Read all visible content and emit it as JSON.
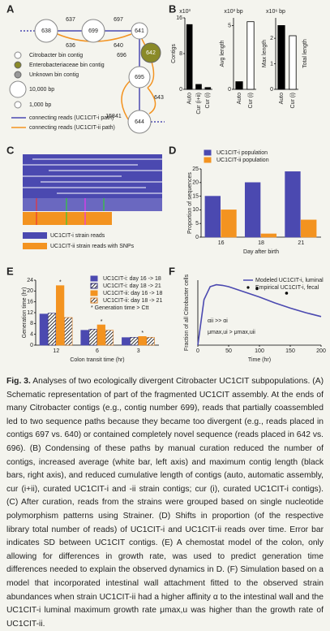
{
  "panel_letters": [
    "A",
    "B",
    "C",
    "D",
    "E",
    "F"
  ],
  "panel_a": {
    "nodes": [
      "638",
      "699",
      "641",
      "642",
      "695",
      "644"
    ],
    "edge_labels": [
      "637",
      "636",
      "697",
      "640",
      "696",
      "15841",
      "643"
    ],
    "legend": [
      "Citrobacter bin contig",
      "Enterobacteriaceae bin contig",
      "Unknown bin contig",
      "10,000 bp",
      "1,000 bp",
      "connecting reads (UC1CIT-i path)",
      "connecting reads (UC1CIT-ii path)"
    ]
  },
  "panel_c": {
    "legend": [
      "UC1CIT-i strain reads",
      "UC1CIT-ii strain reads with SNPs"
    ]
  },
  "chart_data": [
    {
      "type": "bar",
      "y_label": "Contigs",
      "y_unit": "x10³",
      "categories": [
        "Auto",
        "Cur (i+ii)",
        "Cur (i)"
      ],
      "values": [
        14.5,
        1.1,
        0.4
      ],
      "colors": [
        "#000000",
        "#000000",
        "#000000"
      ],
      "ylim": [
        0,
        16
      ],
      "yticks": [
        0,
        8,
        16
      ]
    },
    {
      "type": "bar",
      "y_label": "Avg length",
      "y_unit": "x10³ bp",
      "categories": [
        "Auto",
        "Cur (i)"
      ],
      "values": [
        0.6,
        5.3
      ],
      "colors": [
        "#000000",
        "#ffffff"
      ],
      "ylim": [
        0,
        5.6
      ],
      "yticks": [
        0,
        5
      ]
    },
    {
      "type": "bar",
      "y_label": "Max length",
      "y2_label": "Total length",
      "y_unit": "x10⁶ bp",
      "categories": [
        "Auto",
        "Cur (i)"
      ],
      "values": [
        2.5,
        2.1
      ],
      "colors": [
        "#000000",
        "#ffffff"
      ],
      "ylim": [
        0,
        2.8
      ],
      "yticks": [
        0,
        1,
        2
      ]
    },
    {
      "type": "bar",
      "y_label": "Proportion of sequences",
      "x_label": "Day after birth",
      "categories": [
        "16",
        "18",
        "21"
      ],
      "series": [
        {
          "name": "UC1CIT-i population",
          "color": "#4b49b0",
          "values": [
            15,
            20,
            24
          ]
        },
        {
          "name": "UC1CIT-ii population",
          "color": "#f39320",
          "values": [
            10,
            1.2,
            6.3
          ]
        }
      ],
      "ylim": [
        0,
        25
      ],
      "yticks": [
        0,
        5,
        10,
        15,
        20,
        25
      ]
    },
    {
      "type": "bar",
      "y_label": "Generation time (hr)",
      "x_label": "Colon transit time (hr)",
      "categories": [
        "12",
        "6",
        "3"
      ],
      "series": [
        {
          "name": "UC1CIT-i: day 16 -> 18",
          "color": "#4b49b0",
          "values": [
            11.5,
            5.5,
            2.8
          ]
        },
        {
          "name": "UC1CIT-i: day 18 -> 21",
          "color": "#2f2d80",
          "hatch": true,
          "values": [
            11.8,
            5.9,
            2.9
          ]
        },
        {
          "name": "UC1CIT-ii: day 16 -> 18",
          "color": "#f39320",
          "values": [
            22,
            7.5,
            3.2
          ]
        },
        {
          "name": "UC1CIT-ii: day 18 -> 21",
          "color": "#d9781a",
          "hatch": true,
          "values": [
            10.2,
            5.5,
            2.9
          ]
        }
      ],
      "starred_series": [
        2
      ],
      "star_legend": "* Generation time > Ctt",
      "ylim": [
        0,
        24
      ],
      "yticks": [
        0,
        4,
        8,
        12,
        16,
        20,
        24
      ]
    },
    {
      "type": "line",
      "y_label": "Fraction of all Citrobacter cells",
      "x_label": "Time (hr)",
      "series": [
        {
          "name": "Modeled UC1CIT-i, luminal",
          "color": "#4b49b0",
          "x": [
            0,
            10,
            20,
            30,
            40,
            50,
            75,
            100,
            125,
            150,
            175,
            200
          ],
          "values": [
            0,
            0.7,
            0.9,
            0.93,
            0.92,
            0.9,
            0.82,
            0.74,
            0.65,
            0.57,
            0.5,
            0.44
          ]
        },
        {
          "name": "Empirical UC1CIT-i, fecal",
          "color": "#000000",
          "marker": true,
          "x": [
            96,
            144
          ],
          "values": [
            0.87,
            0.8
          ]
        }
      ],
      "annotations": [
        "αii >> αi",
        "μmax,ui > μmax,uii"
      ],
      "xlim": [
        0,
        200
      ],
      "xticks": [
        0,
        50,
        100,
        150,
        200
      ],
      "ylim": [
        0,
        1
      ]
    }
  ],
  "caption": {
    "label": "Fig. 3.",
    "text": "Analyses of two ecologically divergent Citrobacter UC1CIT subpopulations. (A) Schematic representation of part of the fragmented UC1CIT assembly. At the ends of many Citrobacter contigs (e.g., contig number 699), reads that partially coassembled led to two sequence paths because they became too divergent (e.g., reads placed in contigs 697 vs. 640) or contained completely novel sequence (reads placed in 642 vs. 696). (B) Condensing of these paths by manual curation reduced the number of contigs, increased average (white bar, left axis) and maximum contig length (black bars, right axis), and reduced cumulative length of contigs (auto, automatic assembly, cur (i+ii), curated UC1CIT-i and -ii strain contigs; cur (i), curated UC1CIT-i contigs). (C) After curation, reads from the strains were grouped based on single nucleotide polymorphism patterns using Strainer. (D) Shifts in proportion (of the respective library total number of reads) of UC1CIT-i and UC1CIT-ii reads over time. Error bar indicates SD between UC1CIT contigs. (E) A chemostat model of the colon, only allowing for differences in growth rate, was used to predict generation time differences needed to explain the observed dynamics in D. (F) Simulation based on a model that incorporated intestinal wall attachment fitted to the observed strain abundances when strain UC1CIT-ii had a higher affinity α to the intestinal wall and the UC1CIT-i luminal maximum growth rate μmax,u was higher than the growth rate of UC1CIT-ii."
  }
}
